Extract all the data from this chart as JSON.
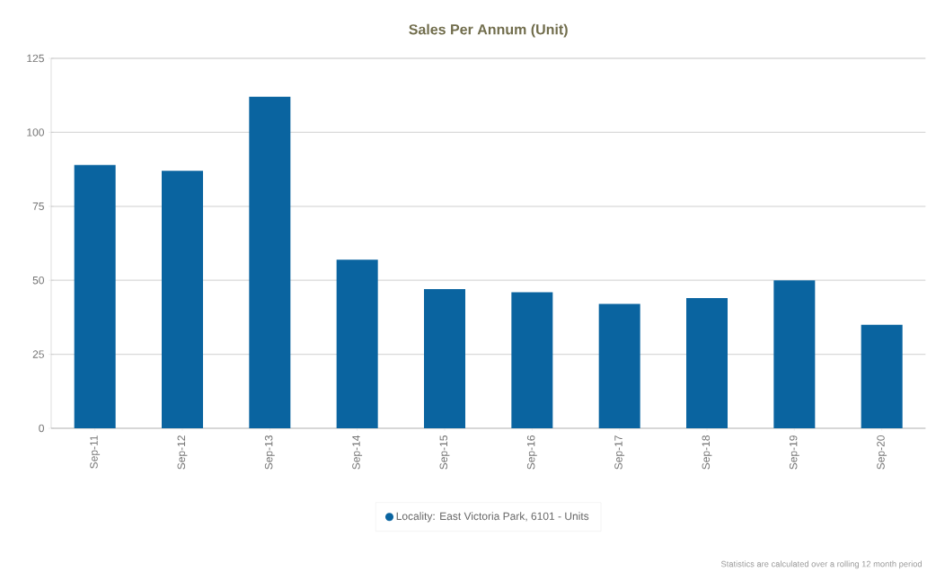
{
  "chart_data": {
    "type": "bar",
    "title": "Sales Per Annum (Unit)",
    "categories": [
      "Sep-11",
      "Sep-12",
      "Sep-13",
      "Sep-14",
      "Sep-15",
      "Sep-16",
      "Sep-17",
      "Sep-18",
      "Sep-19",
      "Sep-20"
    ],
    "series": [
      {
        "name": "Locality: East Victoria Park, 6101 - Units",
        "color": "#0a64a0",
        "values": [
          89,
          87,
          112,
          57,
          47,
          46,
          42,
          44,
          50,
          35
        ]
      }
    ],
    "ylim": [
      0,
      125
    ],
    "yticks": [
      0,
      25,
      50,
      75,
      100,
      125
    ],
    "grid": "y",
    "legend": "bottom",
    "annotations": [
      "Statistics are calculated over a rolling 12 month period"
    ]
  }
}
